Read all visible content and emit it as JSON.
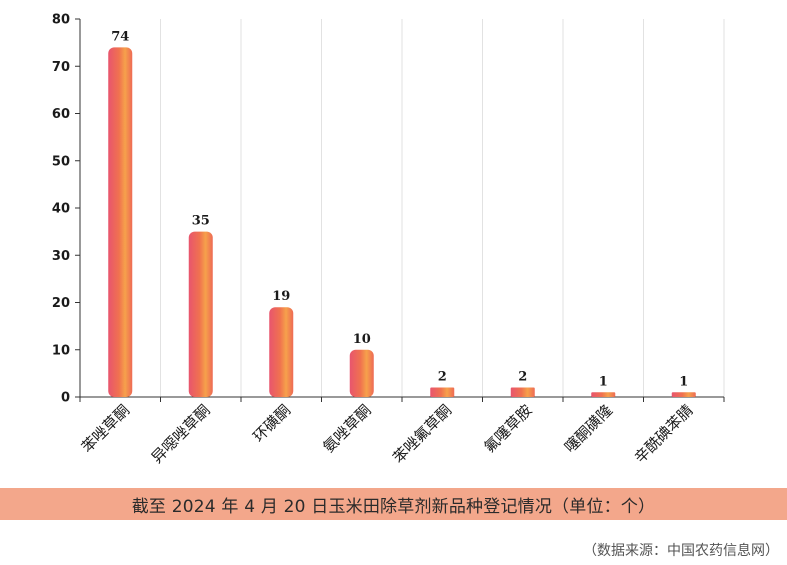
{
  "chart_data": {
    "type": "bar",
    "title": "",
    "xlabel": "",
    "ylabel": "",
    "ylim": [
      0,
      80
    ],
    "yticks": [
      0,
      10,
      20,
      30,
      40,
      50,
      60,
      70,
      80
    ],
    "grid": "vertical",
    "categories": [
      "苯唑草酮",
      "异噁唑草酮",
      "环磺酮",
      "氨唑草酮",
      "苯唑氟草酮",
      "氟噻草胺",
      "噻酮磺隆",
      "辛酰碘苯腈"
    ],
    "values": [
      74,
      35,
      19,
      10,
      2,
      2,
      1,
      1
    ],
    "bar_colors": [
      "#e8556e",
      "#f5a04a"
    ]
  },
  "caption": "截至 2024 年 4 月 20 日玉米田除草剂新品种登记情况（单位：个）",
  "source": "（数据来源：中国农药信息网）",
  "colors": {
    "caption_bg": "#f3a78b",
    "bar_start": "#e8556e",
    "bar_end": "#f5a04a"
  }
}
